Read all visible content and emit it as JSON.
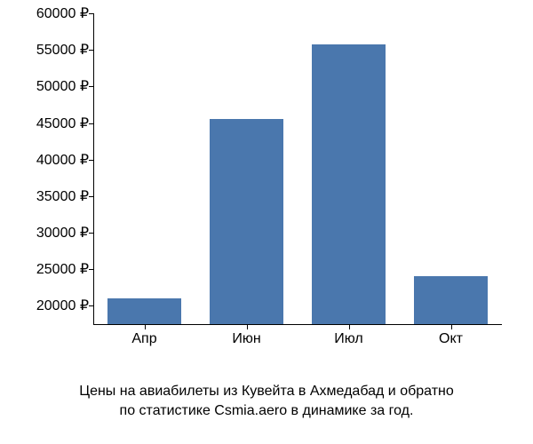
{
  "chart": {
    "type": "bar",
    "categories": [
      "Апр",
      "Июн",
      "Июл",
      "Окт"
    ],
    "values": [
      21000,
      45500,
      55800,
      24000
    ],
    "bar_color": "#4a77ad",
    "background_color": "#ffffff",
    "axis_color": "#000000",
    "text_color": "#000000",
    "y_axis": {
      "min": 17500,
      "max": 60000,
      "ticks": [
        20000,
        25000,
        30000,
        35000,
        40000,
        45000,
        50000,
        55000,
        60000
      ],
      "tick_labels": [
        "20000 ₽",
        "25000 ₽",
        "30000 ₽",
        "35000 ₽",
        "40000 ₽",
        "45000 ₽",
        "50000 ₽",
        "55000 ₽",
        "60000 ₽"
      ]
    },
    "bar_width_ratio": 0.72,
    "label_fontsize": 16,
    "caption_fontsize": 16
  },
  "caption": {
    "line1": "Цены на авиабилеты из Кувейта в Ахмедабад и обратно",
    "line2": "по статистике Csmia.aero в динамике за год."
  }
}
